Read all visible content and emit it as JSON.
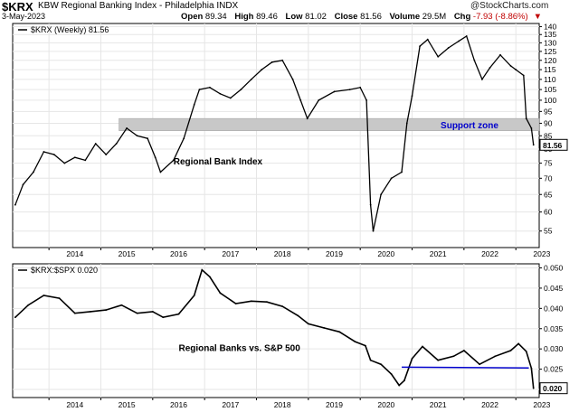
{
  "header": {
    "symbol": "$KRX",
    "index_name": "KBW Regional Banking Index - Philadelphia INDX",
    "date": "3-May-2023",
    "open_label": "Open",
    "open": "89.34",
    "high_label": "High",
    "high": "89.46",
    "low_label": "Low",
    "low": "81.02",
    "close_label": "Close",
    "close": "81.56",
    "volume_label": "Volume",
    "volume": "29.5M",
    "chg_label": "Chg",
    "chg": "-7.93 (-8.86%)",
    "watermark": "@StockCharts.com"
  },
  "colors": {
    "support_band": "#c8c8c8",
    "support_text": "#0000cc",
    "trend_line": "#0000cc",
    "negative": "#c00000",
    "grid": "#e6e6e6"
  },
  "chart_data": [
    {
      "type": "bar",
      "legend": "$KRX (Weekly) 81.56",
      "annotation": "Regional Bank Index",
      "support_label": "Support zone",
      "support_zone": [
        87,
        92
      ],
      "last_value_label": "81.56",
      "scale": "log",
      "ylim": [
        51,
        142
      ],
      "yticks": [
        55,
        60,
        65,
        70,
        75,
        80,
        85,
        90,
        95,
        100,
        105,
        110,
        115,
        120,
        125,
        130,
        135,
        140
      ],
      "xlim": [
        2013.3,
        2023.45
      ],
      "x_tick_labels": [
        "2014",
        "2015",
        "2016",
        "2017",
        "2018",
        "2019",
        "2020",
        "2021",
        "2022",
        "2023"
      ],
      "x": [
        2013.35,
        2013.5,
        2013.7,
        2013.9,
        2014.1,
        2014.3,
        2014.5,
        2014.7,
        2014.9,
        2015.1,
        2015.3,
        2015.5,
        2015.7,
        2015.9,
        2016.05,
        2016.15,
        2016.4,
        2016.6,
        2016.8,
        2016.9,
        2017.1,
        2017.3,
        2017.5,
        2017.7,
        2017.9,
        2018.1,
        2018.3,
        2018.5,
        2018.7,
        2018.85,
        2018.98,
        2019.2,
        2019.5,
        2019.8,
        2020.0,
        2020.12,
        2020.2,
        2020.25,
        2020.4,
        2020.6,
        2020.8,
        2020.9,
        2021.0,
        2021.15,
        2021.3,
        2021.5,
        2021.7,
        2021.9,
        2022.05,
        2022.2,
        2022.35,
        2022.5,
        2022.7,
        2022.9,
        2023.0,
        2023.15,
        2023.2,
        2023.3,
        2023.34
      ],
      "values": [
        62,
        68,
        72,
        79,
        78,
        75,
        77,
        76,
        82,
        78,
        82,
        88,
        85,
        84,
        77,
        72,
        76,
        84,
        98,
        105,
        106,
        103,
        101,
        105,
        110,
        115,
        119,
        120,
        110,
        100,
        92,
        100,
        104,
        105,
        106,
        100,
        62,
        55,
        65,
        70,
        72,
        90,
        102,
        128,
        132,
        122,
        127,
        131,
        134,
        120,
        110,
        116,
        123,
        117,
        115,
        112,
        92,
        88,
        81.56
      ]
    },
    {
      "type": "line",
      "legend": "$KRX:$SPX 0.020",
      "annotation": "Regional Banks vs. S&P 500",
      "last_value_label": "0.020",
      "ylim": [
        0.018,
        0.051
      ],
      "yticks": [
        0.02,
        0.025,
        0.03,
        0.035,
        0.04,
        0.045,
        0.05
      ],
      "xlim": [
        2013.3,
        2023.45
      ],
      "x_tick_labels": [
        "2014",
        "2015",
        "2016",
        "2017",
        "2018",
        "2019",
        "2020",
        "2021",
        "2022",
        "2023"
      ],
      "trend_line": {
        "x": [
          2020.8,
          2023.25
        ],
        "y": [
          0.0255,
          0.0253
        ]
      },
      "x": [
        2013.35,
        2013.6,
        2013.9,
        2014.2,
        2014.5,
        2014.8,
        2015.1,
        2015.4,
        2015.7,
        2016.0,
        2016.2,
        2016.5,
        2016.8,
        2016.95,
        2017.1,
        2017.3,
        2017.6,
        2017.9,
        2018.2,
        2018.5,
        2018.8,
        2019.0,
        2019.3,
        2019.6,
        2019.9,
        2020.1,
        2020.2,
        2020.4,
        2020.6,
        2020.75,
        2020.85,
        2021.0,
        2021.2,
        2021.5,
        2021.8,
        2022.0,
        2022.3,
        2022.6,
        2022.9,
        2023.05,
        2023.2,
        2023.3,
        2023.34
      ],
      "values": [
        0.0378,
        0.0408,
        0.0432,
        0.0425,
        0.0388,
        0.0392,
        0.0396,
        0.0408,
        0.0388,
        0.0392,
        0.0378,
        0.0386,
        0.0432,
        0.0495,
        0.0478,
        0.0438,
        0.0412,
        0.0418,
        0.0416,
        0.0405,
        0.0382,
        0.0362,
        0.0352,
        0.0342,
        0.0318,
        0.0308,
        0.0272,
        0.0262,
        0.0238,
        0.021,
        0.0222,
        0.0276,
        0.0306,
        0.0272,
        0.0282,
        0.0296,
        0.0262,
        0.0282,
        0.0296,
        0.0313,
        0.0294,
        0.0252,
        0.0203
      ]
    }
  ]
}
